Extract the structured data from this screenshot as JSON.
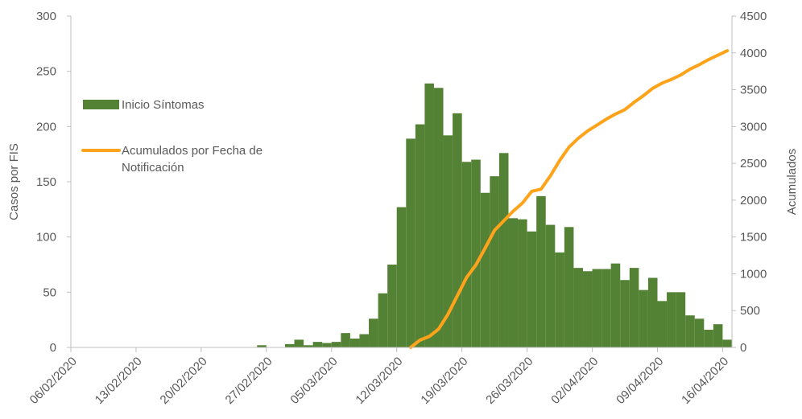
{
  "chart_data": {
    "type": "bar",
    "y_label": "Casos por FIS",
    "y2_label": "Acumulados",
    "categories": [
      "06/02/2020",
      null,
      null,
      null,
      null,
      null,
      null,
      "13/02/2020",
      null,
      null,
      null,
      null,
      null,
      null,
      "20/02/2020",
      null,
      null,
      null,
      null,
      null,
      null,
      "27/02/2020",
      null,
      null,
      null,
      null,
      null,
      null,
      "05/03/2020",
      null,
      null,
      null,
      null,
      null,
      null,
      "12/03/2020",
      null,
      null,
      null,
      null,
      null,
      null,
      "19/03/2020",
      null,
      null,
      null,
      null,
      null,
      null,
      "26/03/2020",
      null,
      null,
      null,
      null,
      null,
      null,
      "02/04/2020",
      null,
      null,
      null,
      null,
      null,
      null,
      "09/04/2020",
      null,
      null,
      null,
      null,
      null,
      null,
      "16/04/2020"
    ],
    "series": [
      {
        "name": "Inicio Síntomas",
        "type": "bar",
        "color": "#548235",
        "values": [
          0,
          0,
          0,
          0,
          0,
          0,
          0,
          0,
          0,
          0,
          0,
          0,
          0,
          0,
          0,
          0,
          0,
          0,
          0,
          0,
          2,
          0,
          0,
          3,
          7,
          2,
          5,
          4,
          5,
          13,
          8,
          12,
          26,
          49,
          75,
          127,
          189,
          202,
          239,
          235,
          192,
          212,
          168,
          170,
          140,
          155,
          176,
          117,
          116,
          105,
          137,
          111,
          86,
          109,
          72,
          69,
          71,
          71,
          76,
          61,
          72,
          52,
          63,
          42,
          50,
          50,
          29,
          26,
          16,
          21,
          7
        ]
      },
      {
        "name": "Acumulados por Fecha de Notificación",
        "type": "line",
        "axis": "y2",
        "color": "#ffa31a",
        "values": [
          null,
          null,
          null,
          null,
          null,
          null,
          null,
          null,
          null,
          null,
          null,
          null,
          null,
          null,
          null,
          null,
          null,
          null,
          null,
          null,
          null,
          null,
          null,
          null,
          null,
          null,
          null,
          null,
          null,
          null,
          null,
          null,
          null,
          null,
          null,
          null,
          0,
          100,
          150,
          250,
          450,
          700,
          950,
          1120,
          1350,
          1590,
          1720,
          1850,
          1960,
          2120,
          2150,
          2330,
          2540,
          2720,
          2840,
          2940,
          3020,
          3100,
          3170,
          3230,
          3330,
          3420,
          3520,
          3590,
          3640,
          3700,
          3780,
          3840,
          3910,
          3970,
          4030
        ]
      }
    ],
    "ylim": [
      0,
      300
    ],
    "yticks": [
      0,
      50,
      100,
      150,
      200,
      250,
      300
    ],
    "y2lim": [
      0,
      4500
    ],
    "y2ticks": [
      0,
      500,
      1000,
      1500,
      2000,
      2500,
      3000,
      3500,
      4000,
      4500
    ],
    "legend": "upper left"
  }
}
